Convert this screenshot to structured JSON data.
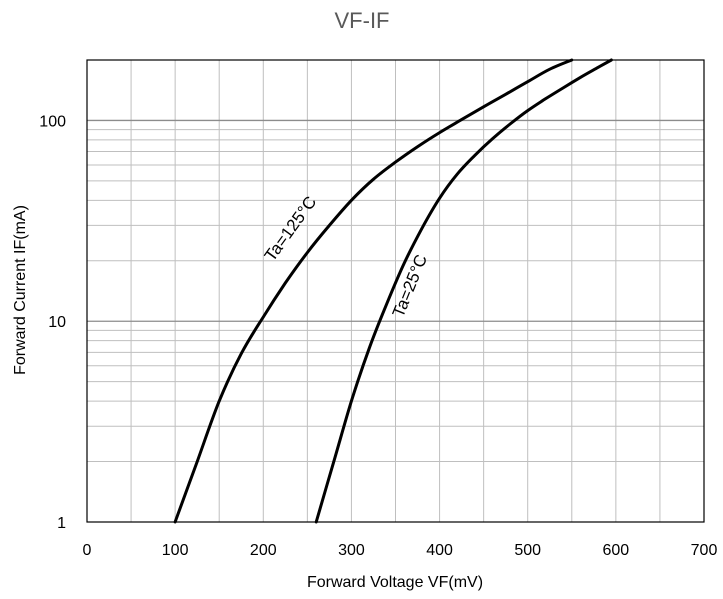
{
  "chart_data": {
    "type": "line",
    "title": "VF-IF",
    "xlabel": "Forward Voltage   VF(mV)",
    "ylabel": "Forward Current   IF(mA)",
    "xlim": [
      0,
      700
    ],
    "ylim": [
      1,
      200
    ],
    "yscale": "log",
    "grid": true,
    "x_ticks": [
      0,
      100,
      200,
      300,
      400,
      500,
      600,
      700
    ],
    "x_tick_labels": [
      "0",
      "100",
      "200",
      "300",
      "400",
      "500",
      "600",
      "700"
    ],
    "y_ticks": [
      1,
      10,
      100
    ],
    "y_tick_labels": [
      "1",
      "10",
      "100"
    ],
    "series": [
      {
        "name": "Ta=125°C",
        "x": [
          100,
          125,
          150,
          175,
          200,
          225,
          250,
          275,
          300,
          325,
          350,
          375,
          400,
          425,
          450,
          475,
          500,
          525,
          550
        ],
        "y": [
          1,
          2.0,
          4.0,
          6.9,
          10.5,
          15.5,
          22,
          30,
          40,
          51,
          62,
          74,
          87,
          101,
          117,
          135,
          156,
          180,
          205
        ]
      },
      {
        "name": "Ta=25°C",
        "x": [
          260,
          280,
          300,
          320,
          340,
          360,
          380,
          400,
          420,
          440,
          460,
          480,
          500,
          520,
          540,
          560,
          580,
          595
        ],
        "y": [
          1,
          2.0,
          4.0,
          7.3,
          12.2,
          19.5,
          29,
          41,
          54,
          67,
          81,
          96,
          112,
          128,
          145,
          164,
          184,
          200
        ]
      }
    ],
    "colors": {
      "line": "#000000",
      "grid": "#bfbfbf",
      "title": "#595959"
    }
  }
}
